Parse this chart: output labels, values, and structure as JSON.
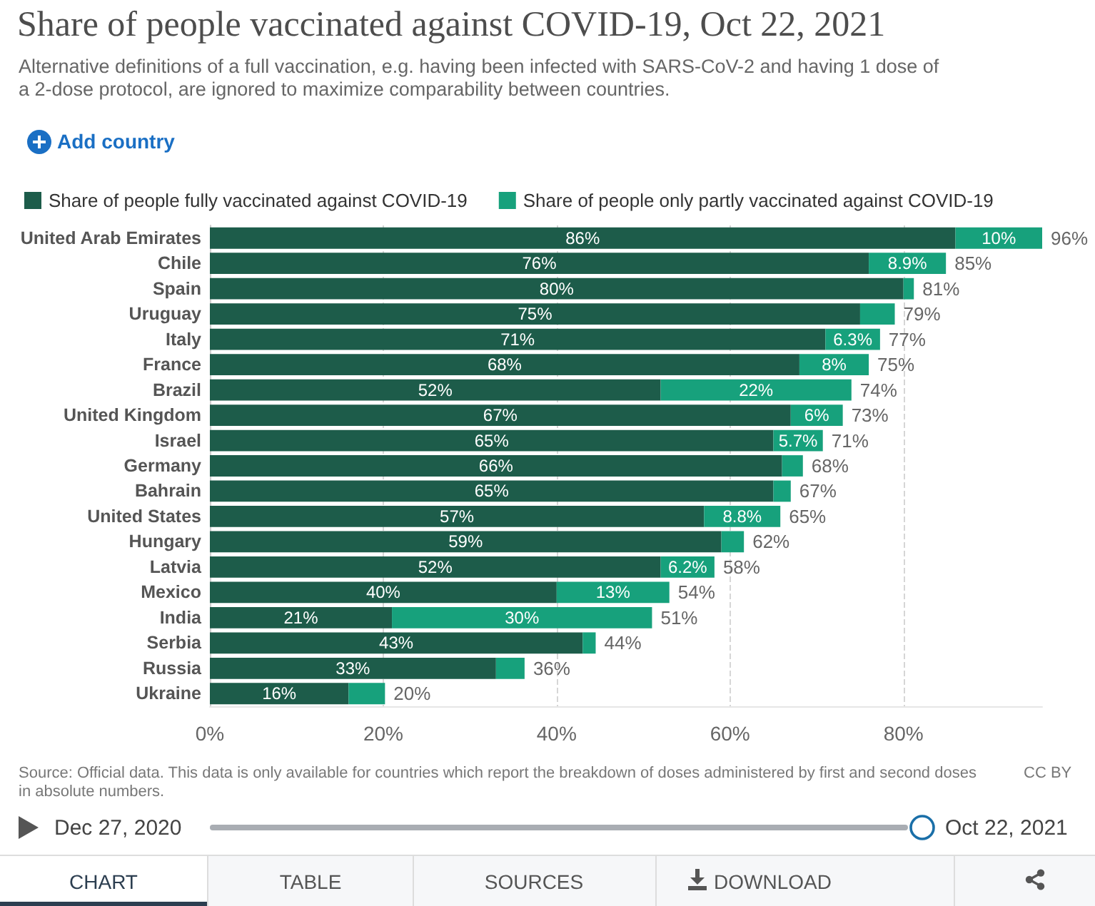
{
  "chart_data": {
    "type": "bar",
    "orientation": "horizontal",
    "stacked": true,
    "title": "Share of people vaccinated against COVID-19, Oct 22, 2021",
    "subtitle": "Alternative definitions of a full vaccination, e.g. having been infected with SARS-CoV-2 and having 1 dose of a 2-dose protocol, are ignored to maximize comparability between countries.",
    "categories": [
      "United Arab Emirates",
      "Chile",
      "Spain",
      "Uruguay",
      "Italy",
      "France",
      "Brazil",
      "United Kingdom",
      "Israel",
      "Germany",
      "Bahrain",
      "United States",
      "Hungary",
      "Latvia",
      "Mexico",
      "India",
      "Serbia",
      "Russia",
      "Ukraine"
    ],
    "series": [
      {
        "name": "Share of people fully vaccinated against COVID-19",
        "color": "#1d5c4a",
        "values": [
          86,
          76,
          80,
          75,
          71,
          68,
          52,
          67,
          65,
          66,
          65,
          57,
          59,
          52,
          40,
          21,
          43,
          33,
          16
        ],
        "value_labels": [
          "86%",
          "76%",
          "80%",
          "75%",
          "71%",
          "68%",
          "52%",
          "67%",
          "65%",
          "66%",
          "65%",
          "57%",
          "59%",
          "52%",
          "40%",
          "21%",
          "43%",
          "33%",
          "16%"
        ]
      },
      {
        "name": "Share of people only partly vaccinated against COVID-19",
        "color": "#17a17c",
        "values": [
          10,
          8.9,
          1.2,
          4,
          6.3,
          8,
          22,
          6,
          5.7,
          2.4,
          2,
          8.8,
          2.6,
          6.2,
          13,
          30,
          1.5,
          3.3,
          4.2
        ],
        "value_labels": [
          "10%",
          "8.9%",
          null,
          null,
          "6.3%",
          "8%",
          "22%",
          "6%",
          "5.7%",
          null,
          null,
          "8.8%",
          null,
          "6.2%",
          "13%",
          "30%",
          null,
          null,
          null
        ]
      }
    ],
    "totals": [
      "96%",
      "85%",
      "81%",
      "79%",
      "77%",
      "75%",
      "74%",
      "73%",
      "71%",
      "68%",
      "67%",
      "65%",
      "62%",
      "58%",
      "54%",
      "51%",
      "44%",
      "36%",
      "20%"
    ],
    "xlim": [
      0,
      96
    ],
    "xticks": [
      {
        "value": 0,
        "label": "0%"
      },
      {
        "value": 20,
        "label": "20%"
      },
      {
        "value": 40,
        "label": "40%"
      },
      {
        "value": 60,
        "label": "60%"
      },
      {
        "value": 80,
        "label": "80%"
      }
    ],
    "grid": "x",
    "legend": "top",
    "annotations": [
      "Add country",
      "Source: Official data. This data is only available for countries which report the breakdown of doses administered by first and second doses in absolute numbers.",
      "CC BY",
      "Dec 27, 2020",
      "Oct 22, 2021",
      "CHART",
      "TABLE",
      "SOURCES",
      "DOWNLOAD"
    ]
  }
}
